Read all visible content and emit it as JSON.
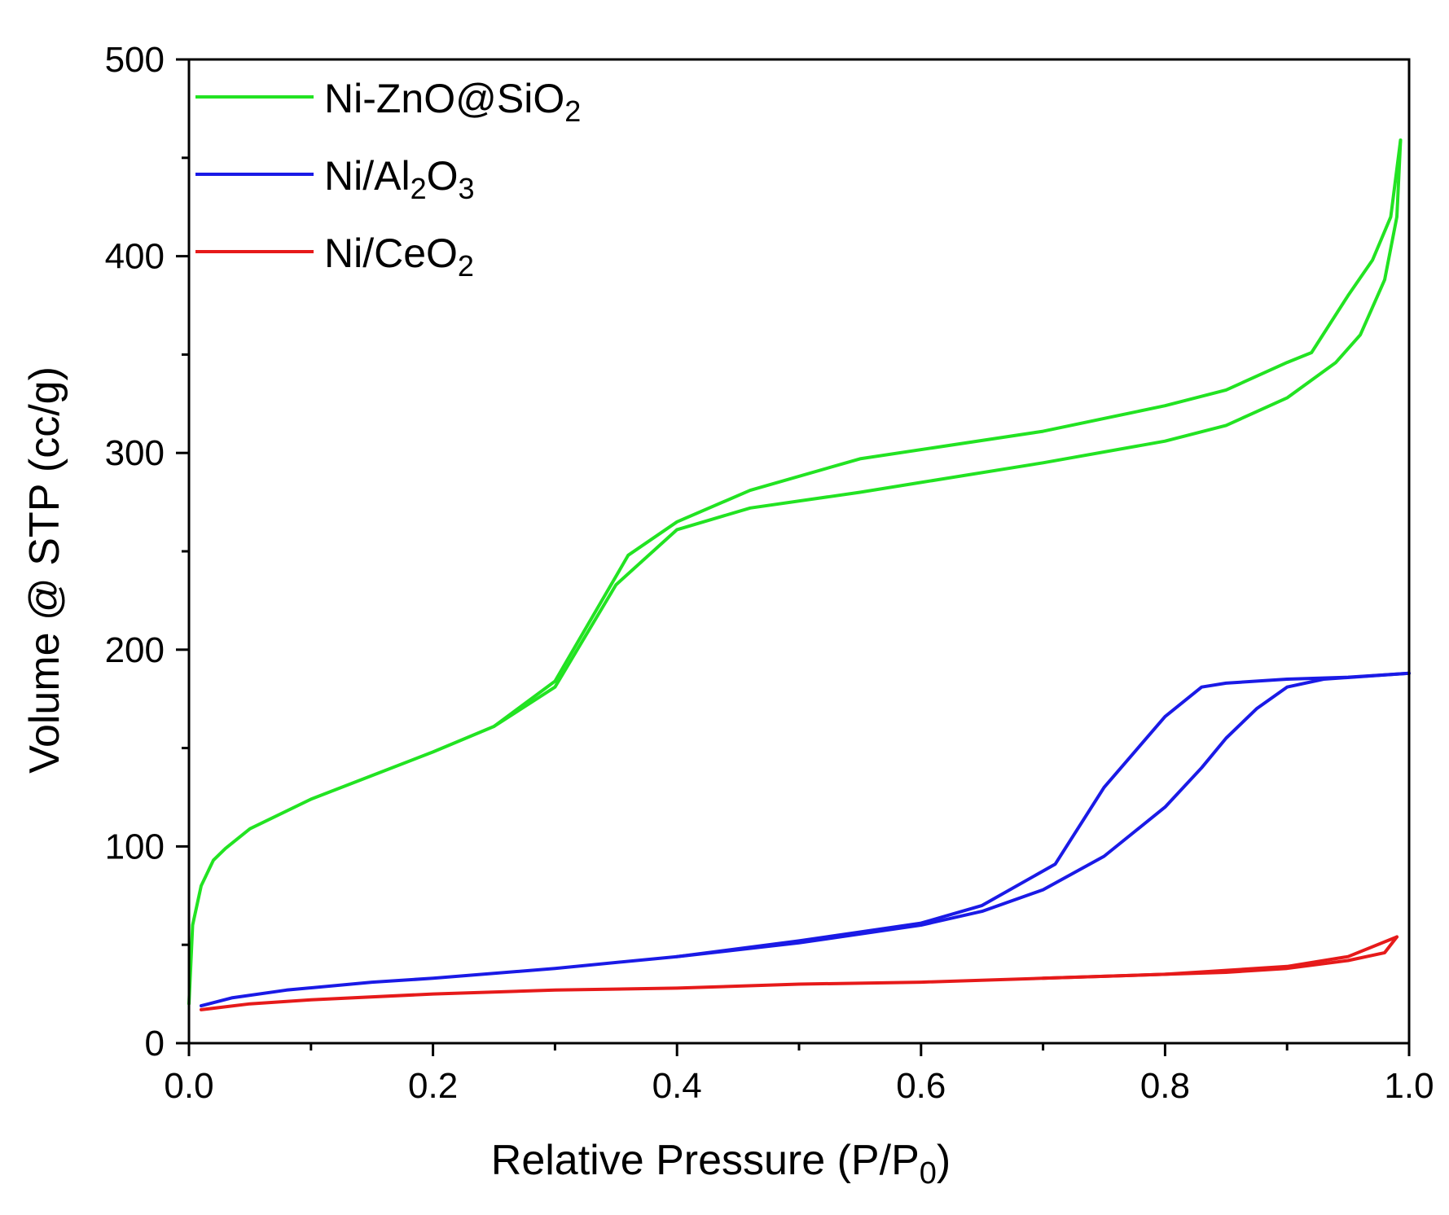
{
  "chart_data": {
    "type": "line",
    "xlabel": "Relative Pressure (P/P",
    "xlabel_sub": "0",
    "xlabel_end": ")",
    "ylabel": "Volume @ STP (cc/g)",
    "xlim": [
      0.0,
      1.0
    ],
    "ylim": [
      0,
      500
    ],
    "x_ticks": [
      0.0,
      0.2,
      0.4,
      0.6,
      0.8,
      1.0
    ],
    "x_tick_labels": [
      "0.0",
      "0.2",
      "0.4",
      "0.6",
      "0.8",
      "1.0"
    ],
    "y_ticks": [
      0,
      100,
      200,
      300,
      400,
      500
    ],
    "y_tick_labels": [
      "0",
      "100",
      "200",
      "300",
      "400",
      "500"
    ],
    "grid": false,
    "legend_position": "top-left",
    "series": [
      {
        "name": "Ni-ZnO@SiO2",
        "label_parts": [
          {
            "t": "Ni-ZnO@SiO"
          },
          {
            "t": "2",
            "sub": true
          }
        ],
        "color": "#22e322",
        "adsorption": [
          [
            0.0,
            20
          ],
          [
            0.003,
            60
          ],
          [
            0.01,
            80
          ],
          [
            0.02,
            93
          ],
          [
            0.03,
            99
          ],
          [
            0.05,
            109
          ],
          [
            0.1,
            124
          ],
          [
            0.15,
            136
          ],
          [
            0.2,
            148
          ],
          [
            0.25,
            161
          ],
          [
            0.3,
            181
          ],
          [
            0.35,
            233
          ],
          [
            0.4,
            261
          ],
          [
            0.46,
            272
          ],
          [
            0.55,
            280
          ],
          [
            0.6,
            285
          ],
          [
            0.7,
            295
          ],
          [
            0.8,
            306
          ],
          [
            0.85,
            314
          ],
          [
            0.9,
            328
          ],
          [
            0.94,
            346
          ],
          [
            0.96,
            360
          ],
          [
            0.98,
            388
          ],
          [
            0.99,
            420
          ],
          [
            0.993,
            459
          ]
        ],
        "desorption": [
          [
            0.993,
            459
          ],
          [
            0.985,
            420
          ],
          [
            0.97,
            398
          ],
          [
            0.95,
            380
          ],
          [
            0.92,
            351
          ],
          [
            0.9,
            346
          ],
          [
            0.85,
            332
          ],
          [
            0.8,
            324
          ],
          [
            0.7,
            311
          ],
          [
            0.55,
            297
          ],
          [
            0.46,
            281
          ],
          [
            0.4,
            265
          ],
          [
            0.36,
            248
          ],
          [
            0.3,
            184
          ],
          [
            0.25,
            161
          ]
        ]
      },
      {
        "name": "Ni/Al2O3",
        "label_parts": [
          {
            "t": "Ni/Al"
          },
          {
            "t": "2",
            "sub": true
          },
          {
            "t": "O"
          },
          {
            "t": "3",
            "sub": true
          }
        ],
        "color": "#1a1ae6",
        "adsorption": [
          [
            0.01,
            19
          ],
          [
            0.035,
            23
          ],
          [
            0.08,
            27
          ],
          [
            0.15,
            31
          ],
          [
            0.2,
            33
          ],
          [
            0.3,
            38
          ],
          [
            0.4,
            44
          ],
          [
            0.5,
            51
          ],
          [
            0.6,
            60
          ],
          [
            0.65,
            67
          ],
          [
            0.7,
            78
          ],
          [
            0.75,
            95
          ],
          [
            0.8,
            120
          ],
          [
            0.83,
            140
          ],
          [
            0.85,
            155
          ],
          [
            0.875,
            170
          ],
          [
            0.9,
            181
          ],
          [
            0.93,
            185
          ],
          [
            1.0,
            188
          ]
        ],
        "desorption": [
          [
            1.0,
            188
          ],
          [
            0.95,
            186
          ],
          [
            0.9,
            185
          ],
          [
            0.85,
            183
          ],
          [
            0.83,
            181
          ],
          [
            0.8,
            166
          ],
          [
            0.75,
            130
          ],
          [
            0.71,
            91
          ],
          [
            0.65,
            70
          ],
          [
            0.6,
            61
          ],
          [
            0.5,
            52
          ],
          [
            0.4,
            44
          ]
        ]
      },
      {
        "name": "Ni/CeO2",
        "label_parts": [
          {
            "t": "Ni/CeO"
          },
          {
            "t": "2",
            "sub": true
          }
        ],
        "color": "#e61a1a",
        "adsorption": [
          [
            0.01,
            17
          ],
          [
            0.05,
            20
          ],
          [
            0.1,
            22
          ],
          [
            0.2,
            25
          ],
          [
            0.3,
            27
          ],
          [
            0.4,
            28
          ],
          [
            0.5,
            30
          ],
          [
            0.6,
            31
          ],
          [
            0.7,
            33
          ],
          [
            0.8,
            35
          ],
          [
            0.85,
            36
          ],
          [
            0.9,
            38
          ],
          [
            0.95,
            42
          ],
          [
            0.98,
            46
          ],
          [
            0.99,
            54
          ]
        ],
        "desorption": [
          [
            0.99,
            54
          ],
          [
            0.95,
            44
          ],
          [
            0.9,
            39
          ],
          [
            0.85,
            37
          ],
          [
            0.8,
            35
          ],
          [
            0.7,
            33
          ]
        ]
      }
    ]
  }
}
